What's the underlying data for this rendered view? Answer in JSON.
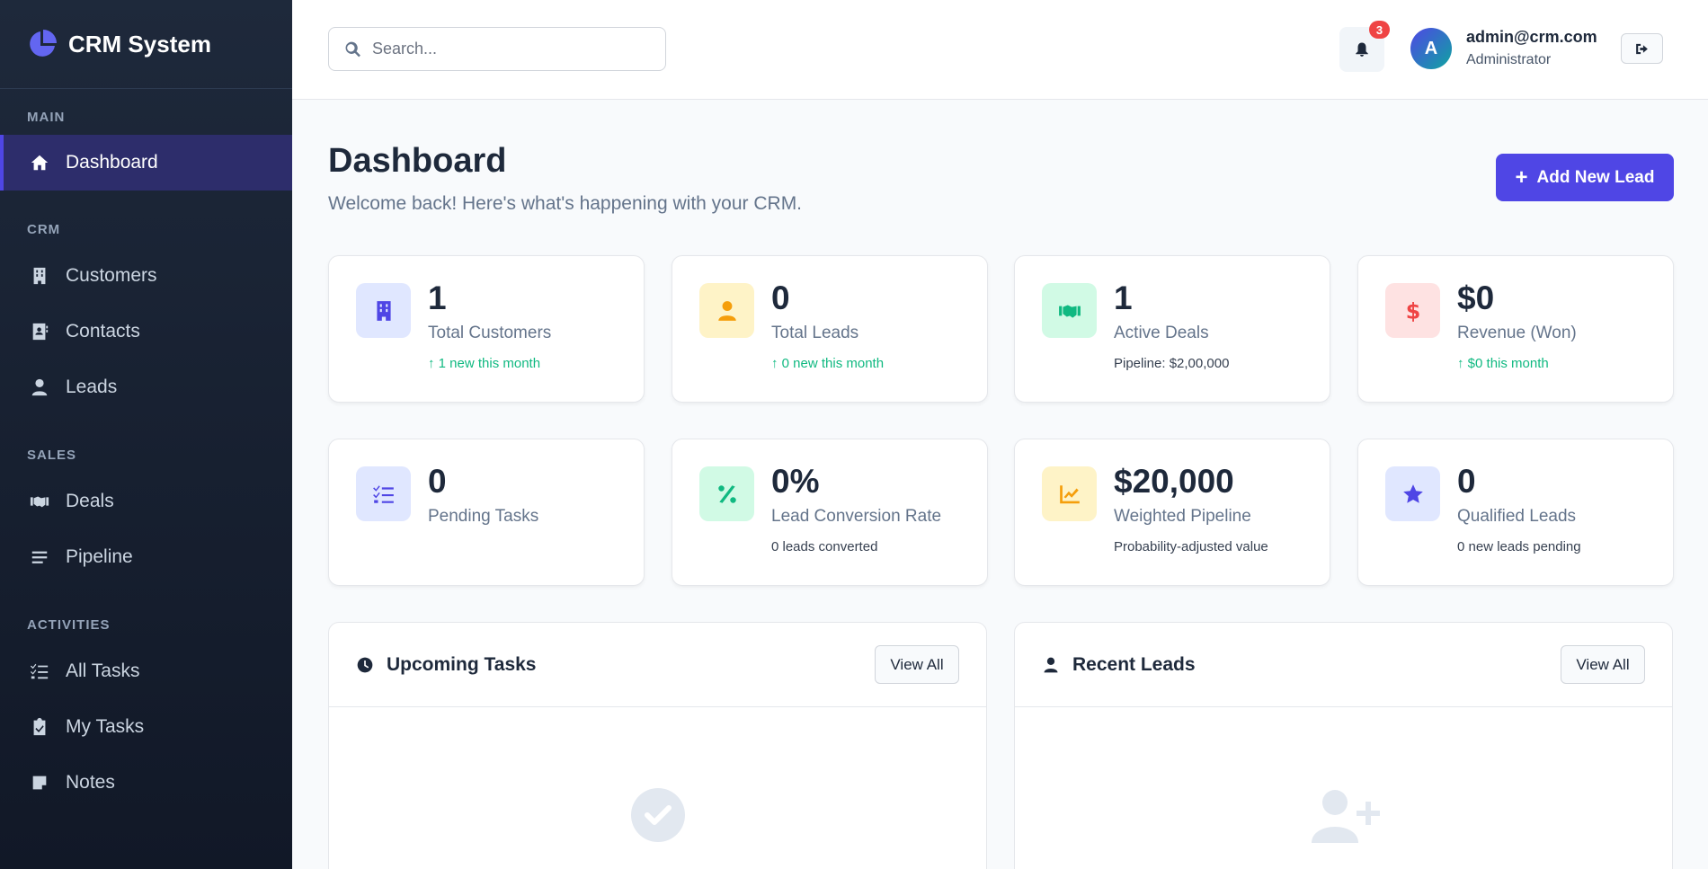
{
  "app": {
    "title": "CRM System"
  },
  "colors": {
    "accent": "#4f46e5",
    "sidebar": "#1e293b",
    "success": "#10b981",
    "danger": "#ef4444"
  },
  "sidebar": {
    "sections": [
      {
        "heading": "MAIN",
        "items": [
          {
            "label": "Dashboard",
            "icon": "home-icon",
            "active": true
          }
        ]
      },
      {
        "heading": "CRM",
        "items": [
          {
            "label": "Customers",
            "icon": "building-icon"
          },
          {
            "label": "Contacts",
            "icon": "contact-card-icon"
          },
          {
            "label": "Leads",
            "icon": "user-tie-icon"
          }
        ]
      },
      {
        "heading": "SALES",
        "items": [
          {
            "label": "Deals",
            "icon": "handshake-icon"
          },
          {
            "label": "Pipeline",
            "icon": "bars-icon"
          }
        ]
      },
      {
        "heading": "ACTIVITIES",
        "items": [
          {
            "label": "All Tasks",
            "icon": "tasks-icon"
          },
          {
            "label": "My Tasks",
            "icon": "clipboard-check-icon"
          },
          {
            "label": "Notes",
            "icon": "sticky-note-icon"
          }
        ]
      }
    ]
  },
  "header": {
    "search_placeholder": "Search...",
    "notification_count": "3",
    "user": {
      "initial": "A",
      "email": "admin@crm.com",
      "role": "Administrator"
    }
  },
  "main": {
    "title": "Dashboard",
    "subtitle": "Welcome back! Here's what's happening with your CRM.",
    "add_button": "Add New Lead",
    "stats": [
      {
        "value": "1",
        "label": "Total Customers",
        "note": "1 new this month",
        "trend": true,
        "icon": "building-icon"
      },
      {
        "value": "0",
        "label": "Total Leads",
        "note": "0 new this month",
        "trend": true,
        "icon": "user-tie-icon"
      },
      {
        "value": "1",
        "label": "Active Deals",
        "note": "Pipeline: $2,00,000",
        "trend": false,
        "icon": "handshake-icon"
      },
      {
        "value": "$0",
        "label": "Revenue (Won)",
        "note": "$0 this month",
        "trend": true,
        "icon": "dollar-icon"
      },
      {
        "value": "0",
        "label": "Pending Tasks",
        "note": "",
        "trend": false,
        "icon": "tasks-icon"
      },
      {
        "value": "0%",
        "label": "Lead Conversion Rate",
        "note": "0 leads converted",
        "trend": false,
        "icon": "percent-icon"
      },
      {
        "value": "$20,000",
        "label": "Weighted Pipeline",
        "note": "Probability-adjusted value",
        "trend": false,
        "icon": "chart-line-icon"
      },
      {
        "value": "0",
        "label": "Qualified Leads",
        "note": "0 new leads pending",
        "trend": false,
        "icon": "star-icon"
      }
    ],
    "panels": [
      {
        "title": "Upcoming Tasks",
        "action": "View All",
        "icon": "clock-icon",
        "empty_icon": "check-circle-icon"
      },
      {
        "title": "Recent Leads",
        "action": "View All",
        "icon": "user-icon",
        "empty_icon": "user-plus-icon"
      }
    ]
  }
}
